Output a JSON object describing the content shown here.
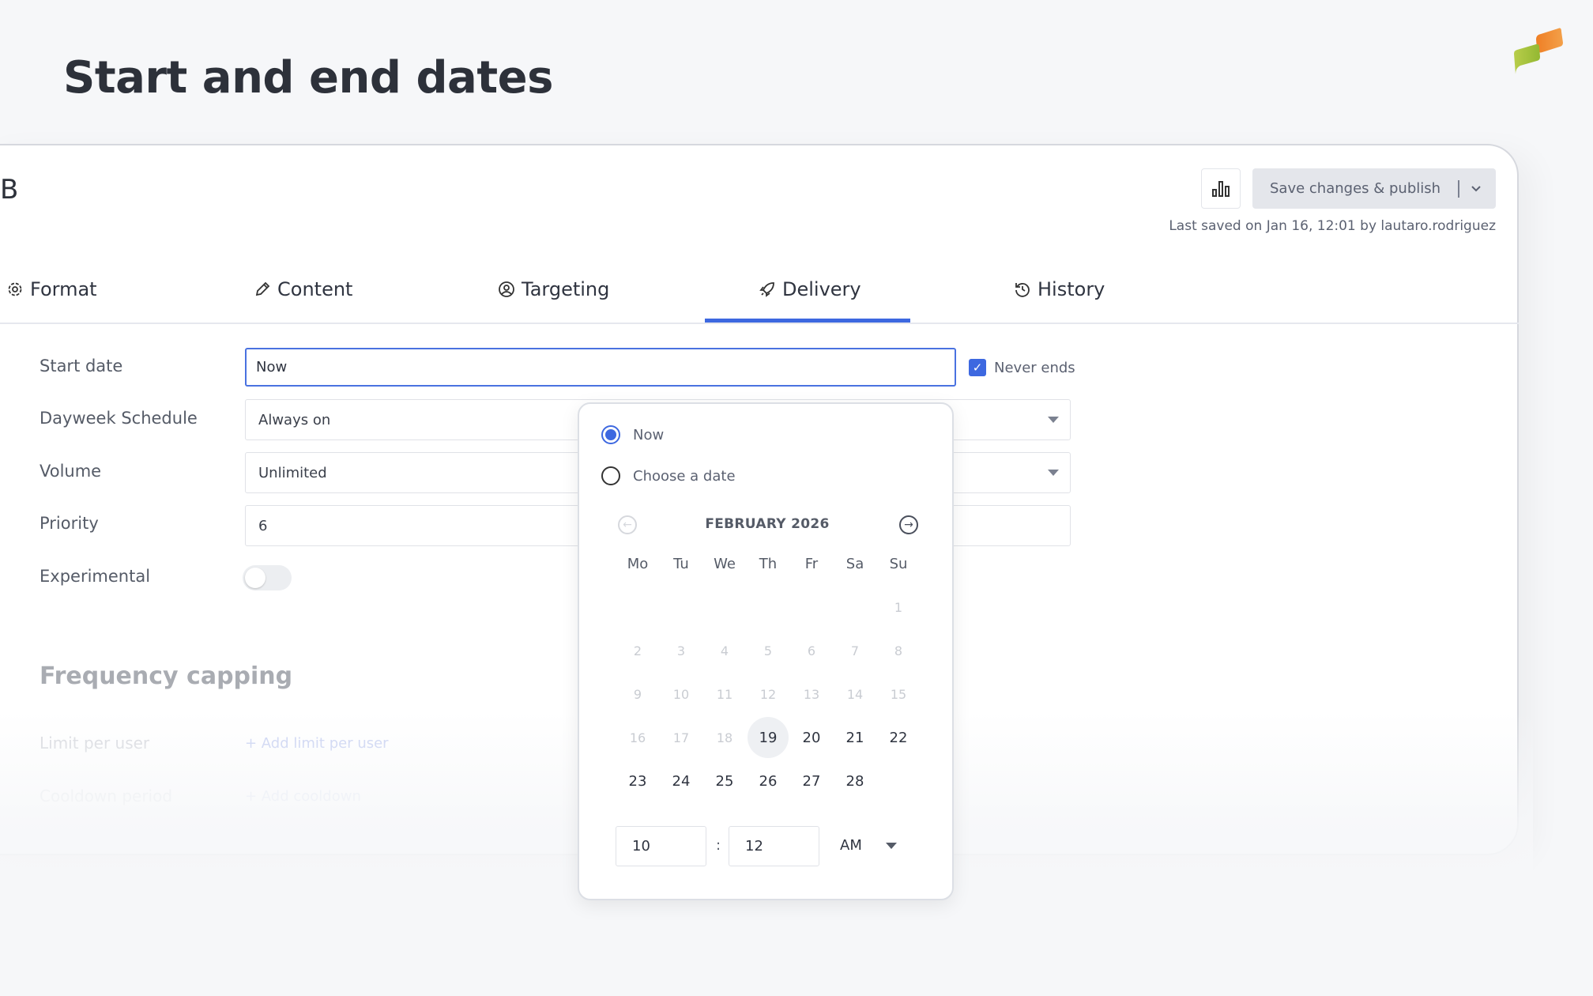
{
  "page_title": "Start and end dates",
  "logo": {
    "colors": [
      "#f08a2e",
      "#a8c43c"
    ]
  },
  "header": {
    "campaign_name_fragment": "B",
    "stats_icon": "bar-chart-icon",
    "save_label": "Save changes & publish",
    "last_saved": "Last saved on Jan 16, 12:01 by lautaro.rodriguez"
  },
  "tabs": [
    {
      "label": "Format",
      "icon": "gear-icon",
      "active": false
    },
    {
      "label": "Content",
      "icon": "pencil-icon",
      "active": false
    },
    {
      "label": "Targeting",
      "icon": "user-circle-icon",
      "active": false
    },
    {
      "label": "Delivery",
      "icon": "rocket-icon",
      "active": true
    },
    {
      "label": "History",
      "icon": "history-icon",
      "active": false
    }
  ],
  "accent_color": "#3d68e0",
  "form": {
    "start_date": {
      "label": "Start date",
      "value": "Now"
    },
    "never_ends": {
      "label": "Never ends",
      "checked": true
    },
    "dayweek": {
      "label": "Dayweek Schedule",
      "value": "Always on"
    },
    "volume": {
      "label": "Volume",
      "value": "Unlimited"
    },
    "priority": {
      "label": "Priority",
      "value": "6"
    },
    "experimental": {
      "label": "Experimental",
      "on": false
    }
  },
  "frequency": {
    "title": "Frequency capping",
    "limit_label": "Limit per user",
    "limit_action": "+ Add limit per user",
    "cooldown_label": "Cooldown period",
    "cooldown_action": "+ Add cooldown"
  },
  "picker": {
    "options": [
      {
        "label": "Now",
        "selected": true
      },
      {
        "label": "Choose a date",
        "selected": false
      }
    ],
    "month": "FEBRUARY 2026",
    "weekdays": [
      "Mo",
      "Tu",
      "We",
      "Th",
      "Fr",
      "Sa",
      "Su"
    ],
    "weeks": [
      [
        null,
        null,
        null,
        null,
        null,
        null,
        1
      ],
      [
        2,
        3,
        4,
        5,
        6,
        7,
        8
      ],
      [
        9,
        10,
        11,
        12,
        13,
        14,
        15
      ],
      [
        16,
        17,
        18,
        19,
        20,
        21,
        22
      ],
      [
        23,
        24,
        25,
        26,
        27,
        28,
        null
      ]
    ],
    "first_enabled_day": 19,
    "highlighted_day": 19,
    "hour": "10",
    "minute": "12",
    "ampm": "AM",
    "time_separator": ":"
  }
}
